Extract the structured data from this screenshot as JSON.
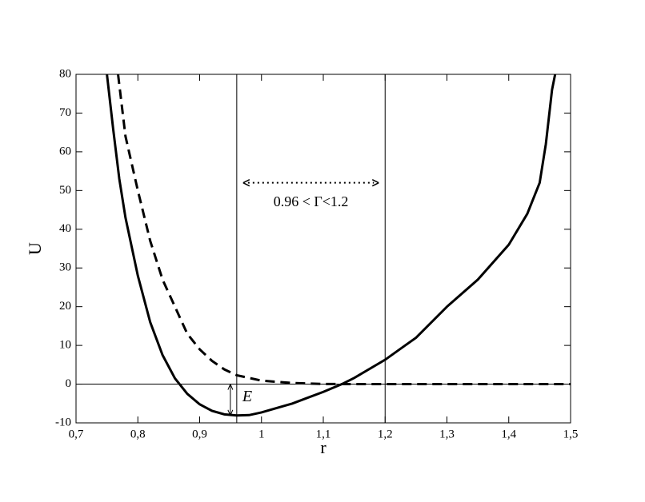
{
  "chart_data": {
    "type": "line",
    "xlabel": "r",
    "ylabel": "U",
    "xlim": [
      0.7,
      1.5
    ],
    "ylim": [
      -10,
      80
    ],
    "xticks": [
      {
        "value": 0.7,
        "label": "0,7"
      },
      {
        "value": 0.8,
        "label": "0,8"
      },
      {
        "value": 0.9,
        "label": "0,9"
      },
      1,
      {
        "value": 1.1,
        "label": "1,1"
      },
      {
        "value": 1.2,
        "label": "1,2"
      },
      {
        "value": 1.3,
        "label": "1,3"
      },
      {
        "value": 1.4,
        "label": "1,4"
      },
      {
        "value": 1.5,
        "label": "1,5"
      }
    ],
    "yticks": [
      -10,
      0,
      10,
      20,
      30,
      40,
      50,
      60,
      70,
      80
    ],
    "vlines": [
      0.96,
      1.2
    ],
    "hlines": [
      0
    ],
    "range_label": "0.96 < Γ<1.2",
    "range_label_y": 52,
    "energy_label": "E",
    "series": [
      {
        "color": "#000000",
        "dash": false,
        "x": [
          0.75,
          0.76,
          0.77,
          0.78,
          0.8,
          0.82,
          0.84,
          0.86,
          0.88,
          0.9,
          0.92,
          0.94,
          0.96,
          0.98,
          1.0,
          1.05,
          1.1,
          1.13,
          1.15,
          1.2,
          1.25,
          1.3,
          1.35,
          1.4,
          1.43,
          1.45,
          1.46,
          1.47,
          1.475
        ],
        "values": [
          80,
          66,
          53,
          43,
          28,
          16,
          7.5,
          1.5,
          -2.5,
          -5.2,
          -6.9,
          -7.8,
          -8.1,
          -8,
          -7.3,
          -5,
          -2,
          0,
          1.6,
          6.3,
          12,
          20,
          27,
          36,
          44,
          52,
          62,
          76,
          80
        ]
      },
      {
        "color": "#000000",
        "dash": true,
        "x": [
          0.768,
          0.78,
          0.8,
          0.82,
          0.84,
          0.86,
          0.88,
          0.9,
          0.92,
          0.94,
          0.96,
          1.0,
          1.05,
          1.1,
          1.15,
          1.5
        ],
        "values": [
          80,
          64,
          50,
          37,
          27,
          20,
          13,
          9,
          6,
          3.8,
          2.3,
          0.9,
          0.3,
          0.05,
          0,
          0
        ]
      }
    ]
  }
}
